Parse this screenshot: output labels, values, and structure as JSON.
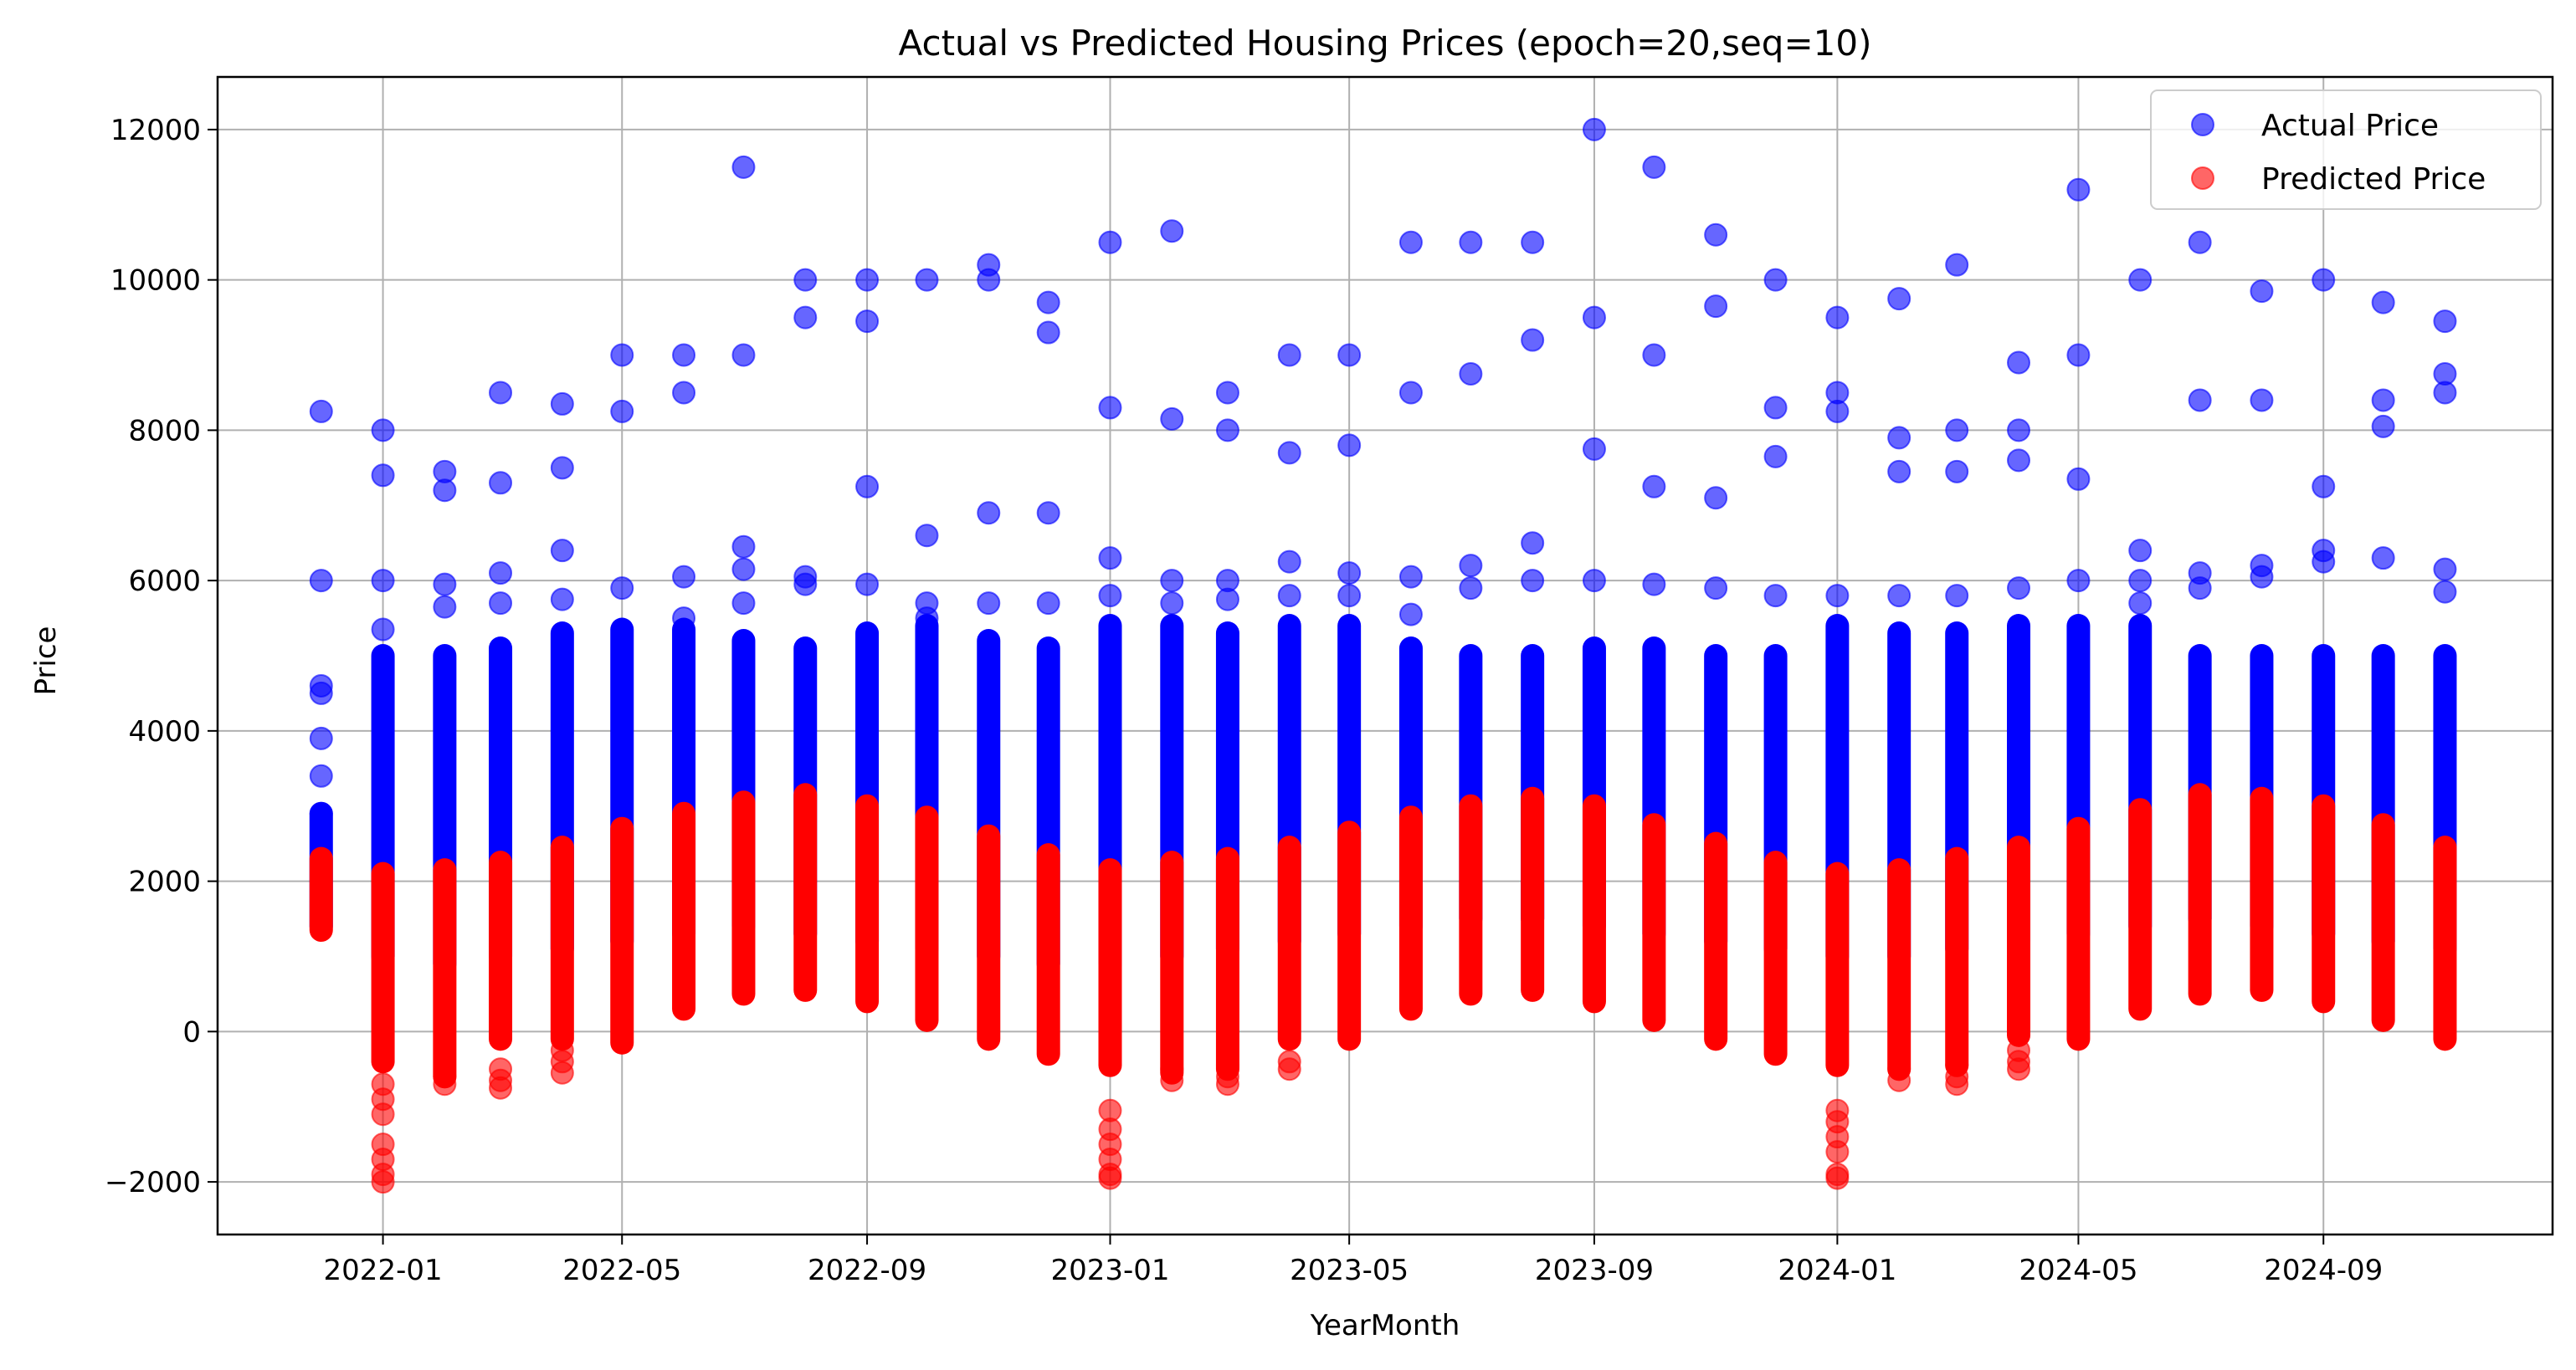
{
  "chart_data": {
    "type": "scatter",
    "title": "Actual vs Predicted Housing Prices (epoch=20,seq=10)",
    "xlabel": "YearMonth",
    "ylabel": "Price",
    "ylim": [
      -2700,
      12700
    ],
    "xlim": [
      "2021-10-10",
      "2024-12-25"
    ],
    "yticks": [
      -2000,
      0,
      2000,
      4000,
      6000,
      8000,
      10000,
      12000
    ],
    "ytick_labels": [
      "−2000",
      "0",
      "2000",
      "4000",
      "6000",
      "8000",
      "10000",
      "12000"
    ],
    "xticks": [
      "2022-01",
      "2022-05",
      "2022-09",
      "2023-01",
      "2023-05",
      "2023-09",
      "2024-01",
      "2024-05",
      "2024-09"
    ],
    "grid": true,
    "legend_position": "top-right",
    "months": [
      "2021-12",
      "2022-01",
      "2022-02",
      "2022-03",
      "2022-04",
      "2022-05",
      "2022-06",
      "2022-07",
      "2022-08",
      "2022-09",
      "2022-10",
      "2022-11",
      "2022-12",
      "2023-01",
      "2023-02",
      "2023-03",
      "2023-04",
      "2023-05",
      "2023-06",
      "2023-07",
      "2023-08",
      "2023-09",
      "2023-10",
      "2023-11",
      "2023-12",
      "2024-01",
      "2024-02",
      "2024-03",
      "2024-04",
      "2024-05",
      "2024-06",
      "2024-07",
      "2024-08",
      "2024-09",
      "2024-10",
      "2024-11"
    ],
    "series": [
      {
        "name": "Actual Price",
        "color": "#0000ff",
        "bands": [
          [
            1400,
            2900
          ],
          [
            1000,
            5000
          ],
          [
            900,
            5000
          ],
          [
            1000,
            5100
          ],
          [
            1100,
            5300
          ],
          [
            1200,
            5350
          ],
          [
            1300,
            5350
          ],
          [
            1400,
            5200
          ],
          [
            1300,
            5100
          ],
          [
            1200,
            5300
          ],
          [
            1100,
            5400
          ],
          [
            1000,
            5200
          ],
          [
            900,
            5100
          ],
          [
            900,
            5400
          ],
          [
            1000,
            5400
          ],
          [
            1100,
            5300
          ],
          [
            1200,
            5400
          ],
          [
            1300,
            5400
          ],
          [
            1400,
            5100
          ],
          [
            1500,
            5000
          ],
          [
            1500,
            5000
          ],
          [
            1400,
            5100
          ],
          [
            1300,
            5100
          ],
          [
            1200,
            5000
          ],
          [
            1100,
            5000
          ],
          [
            1000,
            5400
          ],
          [
            1000,
            5300
          ],
          [
            1100,
            5300
          ],
          [
            1200,
            5400
          ],
          [
            1300,
            5400
          ],
          [
            1400,
            5400
          ],
          [
            1500,
            5000
          ],
          [
            1400,
            5000
          ],
          [
            1300,
            5000
          ],
          [
            1200,
            5000
          ],
          [
            1100,
            5000
          ]
        ],
        "outliers": [
          [
            0,
            [
              8250,
              6000,
              4600,
              4500,
              3900,
              3400,
              2900
            ]
          ],
          [
            1,
            [
              8000,
              7400,
              6000,
              5350
            ]
          ],
          [
            2,
            [
              7450,
              7200,
              5950,
              5650
            ]
          ],
          [
            3,
            [
              8500,
              7300,
              6100,
              5700
            ]
          ],
          [
            4,
            [
              8350,
              7500,
              6400,
              5750
            ]
          ],
          [
            5,
            [
              9000,
              8250,
              5900
            ]
          ],
          [
            6,
            [
              9000,
              8500,
              6050,
              5500
            ]
          ],
          [
            7,
            [
              11500,
              9000,
              6450,
              6150,
              5700
            ]
          ],
          [
            8,
            [
              10000,
              9500,
              6050,
              5950
            ]
          ],
          [
            9,
            [
              10000,
              9450,
              7250,
              5950
            ]
          ],
          [
            10,
            [
              10000,
              6600,
              5700,
              5500
            ]
          ],
          [
            11,
            [
              10200,
              10000,
              6900,
              5700
            ]
          ],
          [
            12,
            [
              9700,
              9300,
              6900,
              5700
            ]
          ],
          [
            13,
            [
              10500,
              8300,
              6300,
              5800
            ]
          ],
          [
            14,
            [
              10650,
              8150,
              6000,
              5700
            ]
          ],
          [
            15,
            [
              8500,
              8000,
              6000,
              5750
            ]
          ],
          [
            16,
            [
              9000,
              7700,
              6250,
              5800
            ]
          ],
          [
            17,
            [
              9000,
              7800,
              6100,
              5800
            ]
          ],
          [
            18,
            [
              10500,
              8500,
              6050,
              5550
            ]
          ],
          [
            19,
            [
              10500,
              8750,
              6200,
              5900
            ]
          ],
          [
            20,
            [
              10500,
              9200,
              6500,
              6000
            ]
          ],
          [
            21,
            [
              12000,
              9500,
              7750,
              6000
            ]
          ],
          [
            22,
            [
              11500,
              9000,
              7250,
              5950
            ]
          ],
          [
            23,
            [
              10600,
              9650,
              7100,
              5900
            ]
          ],
          [
            24,
            [
              10000,
              8300,
              7650,
              5800
            ]
          ],
          [
            25,
            [
              9500,
              8500,
              8250,
              5800
            ]
          ],
          [
            26,
            [
              9750,
              7900,
              7450,
              5800
            ]
          ],
          [
            27,
            [
              10200,
              8000,
              7450,
              5800
            ]
          ],
          [
            28,
            [
              8900,
              8000,
              7600,
              5900
            ]
          ],
          [
            29,
            [
              11200,
              9000,
              7350,
              6000
            ]
          ],
          [
            30,
            [
              10000,
              6400,
              6000,
              5700
            ]
          ],
          [
            31,
            [
              10500,
              8400,
              6100,
              5900
            ]
          ],
          [
            32,
            [
              9850,
              8400,
              6200,
              6050
            ]
          ],
          [
            33,
            [
              10000,
              7250,
              6400,
              6250
            ]
          ],
          [
            34,
            [
              9700,
              8400,
              8050,
              6300
            ]
          ],
          [
            35,
            [
              9450,
              8750,
              8500,
              6150,
              5850
            ]
          ]
        ]
      },
      {
        "name": "Predicted Price",
        "color": "#ff0000",
        "bands": [
          [
            1350,
            2300
          ],
          [
            -400,
            2100
          ],
          [
            -600,
            2150
          ],
          [
            -100,
            2250
          ],
          [
            -100,
            2450
          ],
          [
            -150,
            2700
          ],
          [
            300,
            2900
          ],
          [
            500,
            3050
          ],
          [
            550,
            3150
          ],
          [
            400,
            3000
          ],
          [
            150,
            2850
          ],
          [
            -100,
            2600
          ],
          [
            -300,
            2350
          ],
          [
            -450,
            2150
          ],
          [
            -550,
            2250
          ],
          [
            -500,
            2300
          ],
          [
            -100,
            2450
          ],
          [
            -100,
            2650
          ],
          [
            300,
            2850
          ],
          [
            500,
            3000
          ],
          [
            550,
            3100
          ],
          [
            400,
            3000
          ],
          [
            150,
            2750
          ],
          [
            -100,
            2500
          ],
          [
            -300,
            2250
          ],
          [
            -450,
            2100
          ],
          [
            -500,
            2150
          ],
          [
            -450,
            2300
          ],
          [
            -50,
            2450
          ],
          [
            -100,
            2700
          ],
          [
            300,
            2950
          ],
          [
            500,
            3150
          ],
          [
            550,
            3100
          ],
          [
            400,
            3000
          ],
          [
            150,
            2750
          ],
          [
            -100,
            2450
          ]
        ],
        "outliers": [
          [
            1,
            [
              -700,
              -900,
              -1100,
              -1500,
              -1700,
              -1900,
              -2000
            ]
          ],
          [
            2,
            [
              -700,
              -600
            ]
          ],
          [
            3,
            [
              -750,
              -650,
              -500
            ]
          ],
          [
            4,
            [
              -550,
              -400,
              -250
            ]
          ],
          [
            13,
            [
              -1050,
              -1300,
              -1500,
              -1700,
              -1900,
              -1950
            ]
          ],
          [
            14,
            [
              -650,
              -500
            ]
          ],
          [
            15,
            [
              -700,
              -600,
              -450
            ]
          ],
          [
            16,
            [
              -500,
              -400
            ]
          ],
          [
            25,
            [
              -1050,
              -1200,
              -1400,
              -1600,
              -1900,
              -1950
            ]
          ],
          [
            26,
            [
              -650,
              -500
            ]
          ],
          [
            27,
            [
              -700,
              -600,
              -450
            ]
          ],
          [
            28,
            [
              -500,
              -400,
              -250
            ]
          ]
        ]
      }
    ]
  }
}
